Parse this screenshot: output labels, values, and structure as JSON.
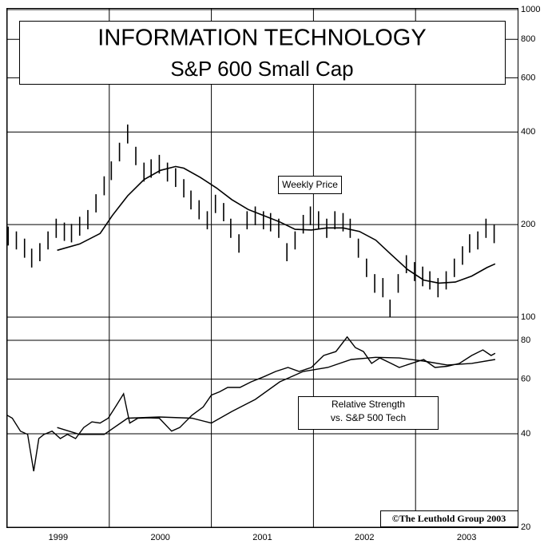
{
  "chart_data": [
    {
      "type": "price",
      "title": "INFORMATION TECHNOLOGY",
      "subtitle": "S&P 600 Small Cap",
      "annotation": "Weekly Price",
      "log_scale": true,
      "xlim": [
        1999,
        2004
      ],
      "ylim": [
        100,
        1000
      ],
      "yticks": [
        100,
        200,
        400,
        600,
        800,
        1000
      ],
      "color": "#000000",
      "x": [
        1999.01,
        1999.09,
        1999.17,
        1999.24,
        1999.32,
        1999.4,
        1999.48,
        1999.56,
        1999.63,
        1999.71,
        1999.79,
        1999.87,
        1999.95,
        2000.02,
        2000.1,
        2000.18,
        2000.26,
        2000.34,
        2000.41,
        2000.49,
        2000.57,
        2000.65,
        2000.73,
        2000.8,
        2000.88,
        2000.96,
        2001.04,
        2001.12,
        2001.19,
        2001.27,
        2001.35,
        2001.43,
        2001.51,
        2001.58,
        2001.66,
        2001.74,
        2001.82,
        2001.9,
        2001.97,
        2002.05,
        2002.13,
        2002.21,
        2002.29,
        2002.36,
        2002.44,
        2002.52,
        2002.6,
        2002.68,
        2002.75,
        2002.83,
        2002.91,
        2002.99,
        2003.07,
        2003.14,
        2003.22,
        2003.3,
        2003.38,
        2003.46,
        2003.53,
        2003.61,
        2003.69,
        2003.77
      ],
      "high": [
        197,
        190,
        180,
        167,
        174,
        190,
        209,
        203,
        201,
        212,
        223,
        251,
        287,
        321,
        369,
        423,
        358,
        318,
        326,
        337,
        318,
        305,
        281,
        258,
        240,
        221,
        250,
        235,
        209,
        186,
        221,
        229,
        221,
        218,
        209,
        174,
        190,
        215,
        229,
        221,
        209,
        221,
        218,
        209,
        180,
        155,
        138,
        134,
        114,
        138,
        159,
        151,
        146,
        141,
        134,
        141,
        155,
        170,
        186,
        190,
        209,
        200
      ],
      "low": [
        171,
        166,
        156,
        145,
        152,
        166,
        181,
        177,
        175,
        184,
        193,
        219,
        249,
        279,
        321,
        367,
        312,
        276,
        284,
        293,
        276,
        265,
        245,
        224,
        208,
        193,
        218,
        205,
        181,
        162,
        193,
        199,
        193,
        190,
        181,
        152,
        166,
        187,
        199,
        193,
        181,
        193,
        190,
        181,
        156,
        135,
        120,
        116,
        100,
        120,
        139,
        131,
        126,
        123,
        116,
        123,
        135,
        148,
        162,
        166,
        181,
        174
      ],
      "moving_average": {
        "x": [
          1999.49,
          1999.71,
          1999.91,
          2000.03,
          2000.18,
          2000.34,
          2000.5,
          2000.65,
          2000.73,
          2000.89,
          2001.05,
          2001.2,
          2001.36,
          2001.51,
          2001.67,
          2001.82,
          2001.98,
          2002.13,
          2002.29,
          2002.45,
          2002.61,
          2002.76,
          2002.92,
          2003.08,
          2003.23,
          2003.39,
          2003.55,
          2003.7,
          2003.78
        ],
        "values": [
          165,
          173,
          187,
          214,
          248,
          280,
          300,
          309,
          305,
          285,
          263,
          241,
          224,
          214,
          204,
          193,
          192,
          195,
          195,
          190,
          178,
          160,
          143,
          132,
          129,
          130,
          136,
          145,
          149
        ]
      }
    },
    {
      "type": "line",
      "annotation": [
        "Relative Strength",
        "vs. S&P 500 Tech"
      ],
      "source": "©The Leuthold Group 2003",
      "log_scale": true,
      "grid": true,
      "xlim": [
        1999,
        2004
      ],
      "xticks": [
        1999,
        2000,
        2001,
        2002,
        2003
      ],
      "ylim": [
        20,
        95
      ],
      "yticks": [
        20,
        40,
        60,
        80
      ],
      "series": [
        {
          "color": "#000000",
          "x": [
            1999.0,
            1999.05,
            1999.13,
            1999.2,
            1999.26,
            1999.31,
            1999.36,
            1999.44,
            1999.52,
            1999.59,
            1999.67,
            1999.75,
            1999.83,
            1999.91,
            1999.99,
            2000.06,
            2000.14,
            2000.2,
            2000.28,
            2000.38,
            2000.49,
            2000.61,
            2000.69,
            2000.81,
            2000.92,
            2001.0,
            2001.08,
            2001.16,
            2001.28,
            2001.39,
            2001.51,
            2001.63,
            2001.75,
            2001.86,
            2001.98,
            2002.1,
            2002.22,
            2002.33,
            2002.41,
            2002.49,
            2002.57,
            2002.65,
            2002.76,
            2002.84,
            2002.96,
            2003.08,
            2003.19,
            2003.31,
            2003.43,
            2003.55,
            2003.66,
            2003.74,
            2003.78
          ],
          "values": [
            45.9,
            44.9,
            40.8,
            39.8,
            30.3,
            38.6,
            39.8,
            40.8,
            38.6,
            39.8,
            38.6,
            41.9,
            43.7,
            43.3,
            44.9,
            48.8,
            53.8,
            43.3,
            44.9,
            45.0,
            44.9,
            40.8,
            41.9,
            45.9,
            48.8,
            53.3,
            54.6,
            56.4,
            56.4,
            58.8,
            61.0,
            63.5,
            65.4,
            63.5,
            65.4,
            71.5,
            73.6,
            82.0,
            75.8,
            73.6,
            67.4,
            70.2,
            67.4,
            65.4,
            67.4,
            69.4,
            65.4,
            66.0,
            67.4,
            71.5,
            74.5,
            71.5,
            72.7
          ]
        },
        {
          "color": "#000000",
          "x": [
            1999.49,
            1999.71,
            1999.95,
            2000.18,
            2000.49,
            2000.81,
            2001.0,
            2001.2,
            2001.43,
            2001.67,
            2001.9,
            2002.14,
            2002.37,
            2002.61,
            2002.84,
            2003.08,
            2003.31,
            2003.55,
            2003.78
          ],
          "values": [
            41.9,
            39.8,
            39.8,
            44.9,
            45.3,
            44.9,
            43.3,
            47.2,
            51.6,
            58.8,
            63.5,
            65.4,
            69.4,
            70.5,
            70.2,
            68.6,
            66.6,
            67.4,
            69.4
          ]
        }
      ]
    }
  ]
}
